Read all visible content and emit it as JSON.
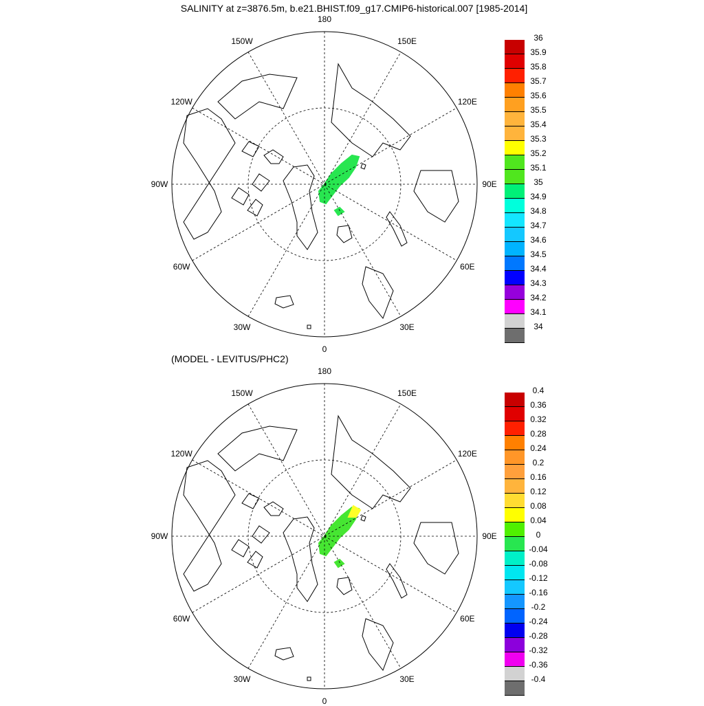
{
  "title": "SALINITY at z=3876.5m, b.e21.BHIST.f09_g17.CMIP6-historical.007 [1985-2014]",
  "diff_title": "(MODEL - LEVITUS/PHC2)",
  "lon_labels": [
    "180",
    "150E",
    "120E",
    "90E",
    "60E",
    "30E",
    "0",
    "30W",
    "60W",
    "90W",
    "120W",
    "150W"
  ],
  "top_panel": {
    "name": "salinity",
    "colorbar": {
      "labels": [
        "36",
        "35.9",
        "35.8",
        "35.7",
        "35.6",
        "35.5",
        "35.4",
        "35.3",
        "35.2",
        "35.1",
        "35",
        "34.9",
        "34.8",
        "34.7",
        "34.6",
        "34.5",
        "34.4",
        "34.3",
        "34.2",
        "34.1",
        "34"
      ],
      "colors": [
        "#c80000",
        "#e00000",
        "#ff2000",
        "#ff8000",
        "#ffa020",
        "#ffb43c",
        "#ffb43c",
        "#ffff00",
        "#50e61e",
        "#50e61e",
        "#00f078",
        "#00ffdc",
        "#14e6ff",
        "#14c8ff",
        "#00b4ff",
        "#0078ff",
        "#0000ff",
        "#9600dc",
        "#ff00ff",
        "#d2d2d2",
        "#6e6e6e"
      ],
      "data_colors": [
        "#28e650",
        "#28e650"
      ]
    }
  },
  "bottom_panel": {
    "name": "difference",
    "colorbar": {
      "labels": [
        "0.4",
        "0.36",
        "0.32",
        "0.28",
        "0.24",
        "0.2",
        "0.16",
        "0.12",
        "0.08",
        "0.04",
        "0",
        "-0.04",
        "-0.08",
        "-0.12",
        "-0.16",
        "-0.2",
        "-0.24",
        "-0.28",
        "-0.32",
        "-0.36",
        "-0.4"
      ],
      "colors": [
        "#c80000",
        "#e00000",
        "#ff2000",
        "#ff8000",
        "#ff9628",
        "#ffa03c",
        "#ffb43c",
        "#ffdc32",
        "#ffff00",
        "#50f000",
        "#28e650",
        "#00f0c8",
        "#00e6f0",
        "#14c8ff",
        "#1496ff",
        "#0064ff",
        "#0000f0",
        "#8c00dc",
        "#f000f0",
        "#d2d2d2",
        "#6e6e6e"
      ],
      "data_colors": [
        "#46e632",
        "#ffff28"
      ]
    }
  }
}
